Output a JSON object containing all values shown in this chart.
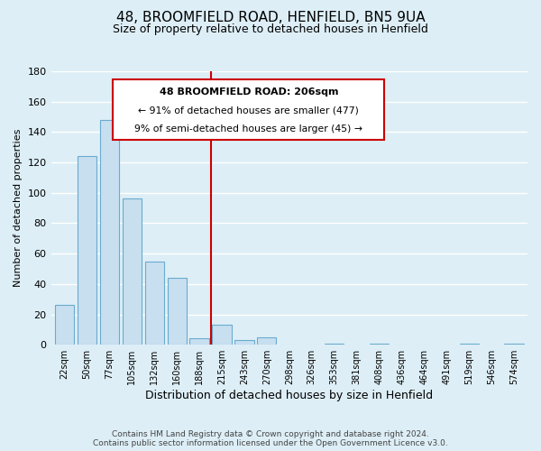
{
  "title": "48, BROOMFIELD ROAD, HENFIELD, BN5 9UA",
  "subtitle": "Size of property relative to detached houses in Henfield",
  "xlabel": "Distribution of detached houses by size in Henfield",
  "ylabel": "Number of detached properties",
  "bin_labels": [
    "22sqm",
    "50sqm",
    "77sqm",
    "105sqm",
    "132sqm",
    "160sqm",
    "188sqm",
    "215sqm",
    "243sqm",
    "270sqm",
    "298sqm",
    "326sqm",
    "353sqm",
    "381sqm",
    "408sqm",
    "436sqm",
    "464sqm",
    "491sqm",
    "519sqm",
    "546sqm",
    "574sqm"
  ],
  "bar_heights": [
    26,
    124,
    148,
    96,
    55,
    44,
    4,
    13,
    3,
    5,
    0,
    0,
    1,
    0,
    1,
    0,
    0,
    0,
    1,
    0,
    1
  ],
  "bar_color": "#c8dff0",
  "bar_edge_color": "#6aabcf",
  "vline_color": "#cc0000",
  "ylim": [
    0,
    180
  ],
  "yticks": [
    0,
    20,
    40,
    60,
    80,
    100,
    120,
    140,
    160,
    180
  ],
  "annotation_title": "48 BROOMFIELD ROAD: 206sqm",
  "annotation_line1": "← 91% of detached houses are smaller (477)",
  "annotation_line2": "9% of semi-detached houses are larger (45) →",
  "annotation_box_color": "#ffffff",
  "annotation_box_edge": "#cc0000",
  "footer_line1": "Contains HM Land Registry data © Crown copyright and database right 2024.",
  "footer_line2": "Contains public sector information licensed under the Open Government Licence v3.0.",
  "background_color": "#ddeef6",
  "plot_bg_color": "#ddeef6",
  "grid_color": "#ffffff",
  "title_fontsize": 11,
  "subtitle_fontsize": 9,
  "xlabel_fontsize": 9,
  "ylabel_fontsize": 8,
  "footer_fontsize": 6.5
}
